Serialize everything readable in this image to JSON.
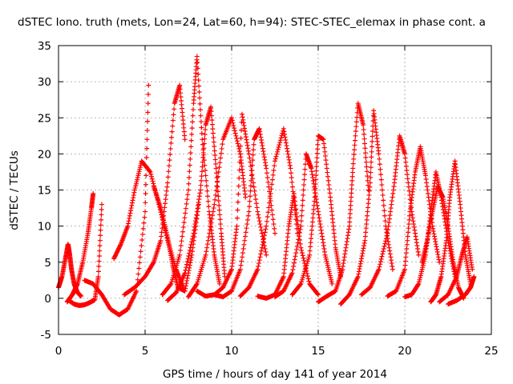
{
  "chart_data": {
    "type": "scatter",
    "title": "dSTEC Iono. truth (mets, Lon=24, Lat=60, h=94): STEC-STEC_elemax in phase cont. a",
    "xlabel": "GPS time / hours of day 141 of year 2014",
    "ylabel": "dSTEC  / TECUs",
    "xlim": [
      0,
      25
    ],
    "ylim": [
      -5,
      35
    ],
    "xticks": [
      0,
      5,
      10,
      15,
      20,
      25
    ],
    "yticks": [
      -5,
      0,
      5,
      10,
      15,
      20,
      25,
      30,
      35
    ],
    "grid": true,
    "marker": "+",
    "color": "#ff0000",
    "series": [
      {
        "x": [
          0.0,
          0.2,
          0.4,
          0.55,
          0.65,
          0.75,
          0.9,
          1.1,
          1.3
        ],
        "y": [
          1.5,
          3.0,
          5.5,
          7.5,
          6.0,
          4.0,
          2.0,
          0.8,
          0.3
        ]
      },
      {
        "x": [
          0.5,
          0.8,
          1.1,
          1.4,
          1.7,
          1.9,
          2.0
        ],
        "y": [
          -0.5,
          0.5,
          2.0,
          5.0,
          9.0,
          12.5,
          14.5
        ]
      },
      {
        "x": [
          0.6,
          0.9,
          1.2,
          1.5,
          1.8,
          2.1,
          2.3,
          2.5
        ],
        "y": [
          -0.3,
          -0.8,
          -1.0,
          -0.9,
          -0.6,
          -0.2,
          3.0,
          13.0
        ]
      },
      {
        "x": [
          1.5,
          2.0,
          2.5,
          3.0,
          3.5,
          4.0,
          4.5,
          5.0,
          5.2
        ],
        "y": [
          2.5,
          2.0,
          0.5,
          -1.5,
          -2.3,
          -1.5,
          1.0,
          12.0,
          29.5
        ]
      },
      {
        "x": [
          3.2,
          3.6,
          4.0,
          4.4,
          4.8,
          5.3,
          5.8,
          6.3,
          6.8,
          7.2
        ],
        "y": [
          5.5,
          7.5,
          10.0,
          15.0,
          19.0,
          17.5,
          13.0,
          8.0,
          4.0,
          1.5
        ]
      },
      {
        "x": [
          3.8,
          4.4,
          5.0,
          5.5,
          5.9,
          6.3,
          6.7,
          7.0,
          7.3
        ],
        "y": [
          0.5,
          1.5,
          3.0,
          5.0,
          8.0,
          16.0,
          27.0,
          29.5,
          22.0
        ]
      },
      {
        "x": [
          5.5,
          5.9,
          6.3,
          6.6,
          6.9,
          7.3,
          7.7,
          8.1
        ],
        "y": [
          15.5,
          12.5,
          8.5,
          4.5,
          1.5,
          1.0,
          6.0,
          13.0
        ]
      },
      {
        "x": [
          6.0,
          6.5,
          7.0,
          7.5,
          7.8,
          8.0,
          8.3,
          8.7,
          9.0,
          9.3
        ],
        "y": [
          0.5,
          2.0,
          6.0,
          15.0,
          27.0,
          33.5,
          22.0,
          12.0,
          6.0,
          2.0
        ]
      },
      {
        "x": [
          6.3,
          6.8,
          7.3,
          7.8,
          8.2,
          8.5,
          8.8,
          9.1,
          9.4,
          9.6
        ],
        "y": [
          -0.3,
          0.8,
          3.5,
          9.0,
          15.0,
          24.0,
          26.5,
          18.0,
          9.0,
          3.0
        ]
      },
      {
        "x": [
          7.5,
          8.0,
          8.5,
          9.0,
          9.5,
          10.0,
          10.5,
          10.8
        ],
        "y": [
          0.2,
          2.0,
          6.0,
          13.0,
          22.0,
          25.0,
          20.0,
          14.0
        ]
      },
      {
        "x": [
          8.0,
          8.5,
          9.0,
          9.5,
          10.0,
          10.3,
          10.6,
          11.0,
          11.5,
          12.0
        ],
        "y": [
          1.0,
          0.3,
          0.5,
          1.5,
          4.0,
          10.0,
          25.5,
          20.0,
          12.0,
          6.0
        ]
      },
      {
        "x": [
          9.0,
          9.5,
          10.0,
          10.5,
          11.0,
          11.3,
          11.6,
          12.0,
          12.5
        ],
        "y": [
          0.5,
          0.2,
          1.0,
          4.0,
          12.0,
          22.0,
          23.5,
          18.0,
          9.0
        ]
      },
      {
        "x": [
          10.5,
          11.0,
          11.5,
          12.0,
          12.5,
          13.0,
          13.4,
          13.8
        ],
        "y": [
          0.3,
          1.5,
          4.0,
          10.0,
          19.0,
          23.5,
          18.0,
          9.0
        ]
      },
      {
        "x": [
          11.5,
          12.0,
          12.5,
          13.0,
          13.3,
          13.6,
          14.0,
          14.5,
          15.0
        ],
        "y": [
          0.3,
          0.0,
          0.5,
          3.0,
          10.0,
          14.5,
          7.0,
          2.0,
          0.5
        ]
      },
      {
        "x": [
          12.5,
          13.0,
          13.5,
          14.0,
          14.3,
          14.6,
          15.0,
          15.4,
          15.8
        ],
        "y": [
          0.2,
          1.0,
          3.5,
          10.0,
          20.0,
          18.0,
          12.0,
          6.0,
          2.0
        ]
      },
      {
        "x": [
          13.5,
          14.0,
          14.5,
          14.8,
          15.0,
          15.3,
          15.7,
          16.0,
          16.3
        ],
        "y": [
          0.5,
          2.0,
          6.0,
          14.0,
          22.5,
          22.0,
          14.0,
          7.0,
          3.0
        ]
      },
      {
        "x": [
          15.0,
          15.5,
          16.0,
          16.4,
          16.8,
          17.0,
          17.3,
          17.6,
          17.9
        ],
        "y": [
          -0.5,
          0.3,
          1.0,
          4.0,
          10.0,
          18.0,
          27.0,
          24.0,
          15.0
        ]
      },
      {
        "x": [
          16.3,
          16.8,
          17.3,
          17.7,
          18.0,
          18.2,
          18.5,
          18.9,
          19.3
        ],
        "y": [
          -0.8,
          0.5,
          3.0,
          8.0,
          16.0,
          26.0,
          20.0,
          10.0,
          4.0
        ]
      },
      {
        "x": [
          17.5,
          18.0,
          18.5,
          19.0,
          19.4,
          19.7,
          20.0,
          20.4,
          20.8
        ],
        "y": [
          0.5,
          1.5,
          4.0,
          9.0,
          16.0,
          22.5,
          20.0,
          12.0,
          6.0
        ]
      },
      {
        "x": [
          19.0,
          19.5,
          20.0,
          20.3,
          20.6,
          20.9,
          21.2,
          21.6,
          22.0
        ],
        "y": [
          0.3,
          1.0,
          4.0,
          12.0,
          17.5,
          21.0,
          17.0,
          10.0,
          5.0
        ]
      },
      {
        "x": [
          20.0,
          20.4,
          20.8,
          21.2,
          21.5,
          21.8,
          22.1,
          22.5,
          22.9
        ],
        "y": [
          0.2,
          0.5,
          2.0,
          6.0,
          12.0,
          17.5,
          14.0,
          8.0,
          3.0
        ]
      },
      {
        "x": [
          21.0,
          21.3,
          21.6,
          21.9,
          22.2,
          22.5,
          22.8,
          23.1,
          23.4
        ],
        "y": [
          5.0,
          8.0,
          12.0,
          15.5,
          14.0,
          10.0,
          5.0,
          1.5,
          0.0
        ]
      },
      {
        "x": [
          21.5,
          21.8,
          22.1,
          22.4,
          22.6,
          22.9,
          23.2,
          23.5,
          23.8
        ],
        "y": [
          -0.5,
          0.5,
          3.0,
          8.0,
          14.0,
          19.0,
          13.0,
          6.0,
          2.0
        ]
      },
      {
        "x": [
          22.0,
          22.5,
          23.0,
          23.3,
          23.6,
          23.9
        ],
        "y": [
          -0.5,
          0.5,
          3.0,
          6.0,
          8.5,
          4.0
        ]
      },
      {
        "x": [
          22.5,
          23.0,
          23.5,
          23.8,
          24.0
        ],
        "y": [
          -0.8,
          -0.3,
          0.5,
          1.5,
          3.0
        ]
      }
    ]
  }
}
